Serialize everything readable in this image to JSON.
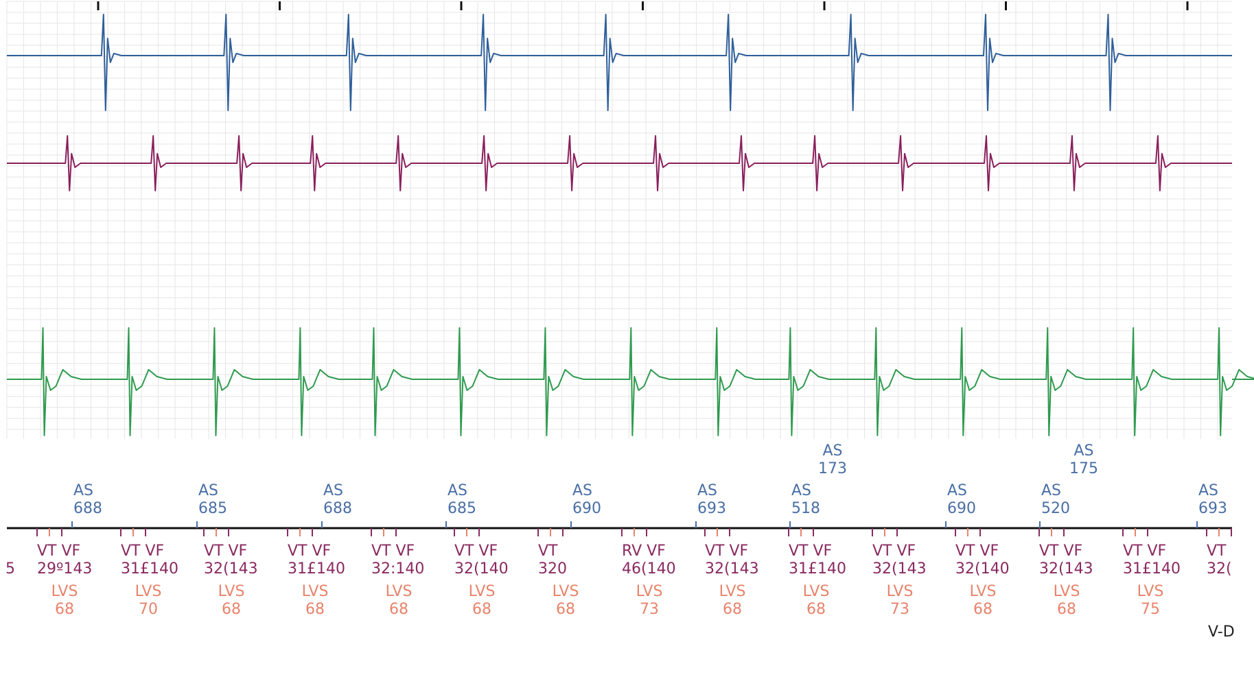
{
  "chart_data": {
    "type": "line",
    "colors": {
      "ch1": "#2f5f9a",
      "ch2": "#8a1f5c",
      "ch3": "#2e9a4e",
      "atrial_marker": "#4a6fa5",
      "ventricular_marker": "#8a2a60",
      "lv_marker": "#e8836b",
      "grid": "#e6e6e6",
      "axis": "#111111"
    },
    "channels": [
      {
        "id": "ch1",
        "spikes": [
          0.08,
          0.18,
          0.28,
          0.39,
          0.49,
          0.59,
          0.69,
          0.8,
          0.9
        ]
      },
      {
        "id": "ch2",
        "spikes": [
          0.05,
          0.12,
          0.19,
          0.25,
          0.32,
          0.39,
          0.46,
          0.53,
          0.6,
          0.66,
          0.73,
          0.8,
          0.87,
          0.94
        ]
      },
      {
        "id": "ch3",
        "spikes": [
          0.03,
          0.1,
          0.17,
          0.24,
          0.3,
          0.37,
          0.44,
          0.51,
          0.58,
          0.64,
          0.71,
          0.78,
          0.85,
          0.92,
          0.99
        ]
      }
    ],
    "atrial_markers_upper": [
      {
        "label": "AS",
        "value": "173"
      },
      {
        "label": "AS",
        "value": "175"
      }
    ],
    "atrial_markers": [
      {
        "label": "AS",
        "value": "688"
      },
      {
        "label": "AS",
        "value": "685"
      },
      {
        "label": "AS",
        "value": "688"
      },
      {
        "label": "AS",
        "value": "685"
      },
      {
        "label": "AS",
        "value": "690"
      },
      {
        "label": "AS",
        "value": "693"
      },
      {
        "label": "AS",
        "value": "518"
      },
      {
        "label": "AS",
        "value": "690"
      },
      {
        "label": "AS",
        "value": "520"
      },
      {
        "label": "AS",
        "value": "693"
      }
    ],
    "leading_value": "5",
    "ventricular_markers": [
      {
        "label": "VT VF",
        "value": "29º143",
        "lv_label": "LVS",
        "lv_value": "68"
      },
      {
        "label": "VT VF",
        "value": "31£140",
        "lv_label": "LVS",
        "lv_value": "70"
      },
      {
        "label": "VT VF",
        "value": "32(143",
        "lv_label": "LVS",
        "lv_value": "68"
      },
      {
        "label": "VT VF",
        "value": "31£140",
        "lv_label": "LVS",
        "lv_value": "68"
      },
      {
        "label": "VT VF",
        "value": "32:140",
        "lv_label": "LVS",
        "lv_value": "68"
      },
      {
        "label": "VT VF",
        "value": "32(140",
        "lv_label": "LVS",
        "lv_value": "68"
      },
      {
        "label": "VT",
        "value": "320",
        "lv_label": "LVS",
        "lv_value": "68"
      },
      {
        "label": "RV VF",
        "value": "46(140",
        "lv_label": "LVS",
        "lv_value": "73"
      },
      {
        "label": "VT VF",
        "value": "32(143",
        "lv_label": "LVS",
        "lv_value": "68"
      },
      {
        "label": "VT VF",
        "value": "31£140",
        "lv_label": "LVS",
        "lv_value": "68"
      },
      {
        "label": "VT VF",
        "value": "32(143",
        "lv_label": "LVS",
        "lv_value": "73"
      },
      {
        "label": "VT VF",
        "value": "32(140",
        "lv_label": "LVS",
        "lv_value": "68"
      },
      {
        "label": "VT VF",
        "value": "32(143",
        "lv_label": "LVS",
        "lv_value": "68"
      },
      {
        "label": "VT VF",
        "value": "31£140",
        "lv_label": "LVS",
        "lv_value": "75"
      },
      {
        "label": "VT",
        "value": "32(",
        "lv_label": "",
        "lv_value": ""
      }
    ],
    "corner_label": "V-D"
  }
}
